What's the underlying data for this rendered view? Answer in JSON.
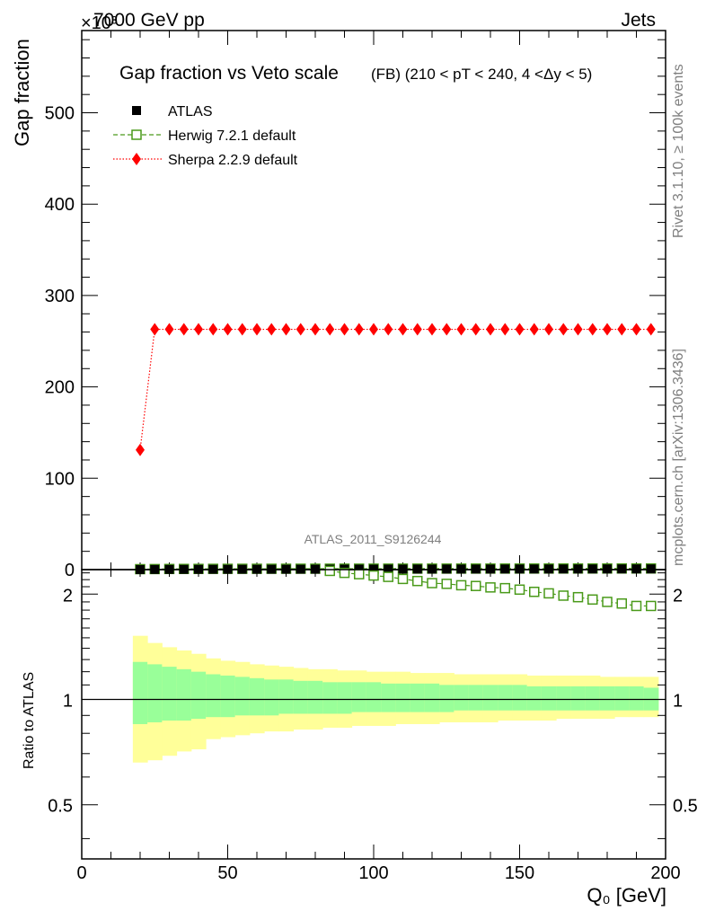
{
  "header": {
    "left": "7000 GeV pp",
    "right": "Jets",
    "exponent": "×10³"
  },
  "side_text": {
    "rivet": "Rivet 3.1.10, ≥ 100k events",
    "mcplots": "mcplots.cern.ch [arXiv:1306.3436]"
  },
  "watermark": "ATLAS_2011_S9126244",
  "colors": {
    "atlas": "#000000",
    "herwig": "#4a9a1a",
    "sherpa": "#ff0000",
    "band_inner": "#99ff99",
    "band_outer": "#ffff99"
  },
  "chart_data": [
    {
      "type": "scatter",
      "title": "Gap fraction vs Veto scale",
      "subtitle": "(FB) (210 < pT < 240, 4 <Δy < 5)",
      "xlabel": "Q₀ [GeV]",
      "ylabel": "Gap fraction",
      "xlim": [
        0,
        200
      ],
      "ylim": [
        0,
        590
      ],
      "yticks": [
        0,
        100,
        200,
        300,
        400,
        500
      ],
      "legend_position": "top-left",
      "x": [
        20,
        25,
        30,
        35,
        40,
        45,
        50,
        55,
        60,
        65,
        70,
        75,
        80,
        85,
        90,
        95,
        100,
        105,
        110,
        115,
        120,
        125,
        130,
        135,
        140,
        145,
        150,
        155,
        160,
        165,
        170,
        175,
        180,
        185,
        190,
        195
      ],
      "series": [
        {
          "name": "ATLAS",
          "marker": "filled-square",
          "values": [
            0.12,
            0.19,
            0.24,
            0.28,
            0.31,
            0.34,
            0.36,
            0.38,
            0.4,
            0.42,
            0.44,
            0.46,
            0.48,
            0.5,
            0.52,
            0.54,
            0.55,
            0.57,
            0.58,
            0.6,
            0.61,
            0.62,
            0.63,
            0.64,
            0.66,
            0.67,
            0.68,
            0.69,
            0.7,
            0.71,
            0.72,
            0.73,
            0.74,
            0.75,
            0.76,
            0.77
          ]
        },
        {
          "name": "Herwig 7.2.1 default",
          "marker": "open-square",
          "line": "dashed",
          "values": [
            0.5,
            0.6,
            0.7,
            0.75,
            0.8,
            0.85,
            0.88,
            0.9,
            0.92,
            0.94,
            0.96,
            0.98,
            1.0,
            1.02,
            1.04,
            1.05,
            1.06,
            1.07,
            1.08,
            1.09,
            1.1,
            1.11,
            1.12,
            1.13,
            1.14,
            1.15,
            1.16,
            1.17,
            1.18,
            1.19,
            1.2,
            1.21,
            1.22,
            1.23,
            1.24,
            1.25
          ]
        },
        {
          "name": "Sherpa 2.2.9 default",
          "marker": "filled-diamond",
          "line": "dotted",
          "values": [
            131,
            263,
            263,
            263,
            263,
            263,
            263,
            263,
            263,
            263,
            263,
            263,
            263,
            263,
            263,
            263,
            263,
            263,
            263,
            263,
            263,
            263,
            263,
            263,
            263,
            263,
            263,
            263,
            263,
            263,
            263,
            263,
            263,
            263,
            263,
            263
          ]
        }
      ]
    },
    {
      "type": "line",
      "ylabel": "Ratio to ATLAS",
      "xlabel": "Q₀ [GeV]",
      "xlim": [
        0,
        200
      ],
      "ylim": [
        0.35,
        2.35
      ],
      "yticks": [
        0.5,
        1,
        2
      ],
      "xticks": [
        0,
        50,
        100,
        150,
        200
      ],
      "bin_edges": [
        17.5,
        22.5,
        27.5,
        32.5,
        37.5,
        42.5,
        47.5,
        52.5,
        57.5,
        62.5,
        67.5,
        72.5,
        77.5,
        82.5,
        87.5,
        92.5,
        97.5,
        102.5,
        107.5,
        112.5,
        117.5,
        122.5,
        127.5,
        132.5,
        137.5,
        142.5,
        147.5,
        152.5,
        157.5,
        162.5,
        167.5,
        172.5,
        177.5,
        182.5,
        187.5,
        192.5,
        197.5
      ],
      "band_inner": {
        "lo": [
          0.85,
          0.86,
          0.87,
          0.87,
          0.88,
          0.89,
          0.89,
          0.9,
          0.9,
          0.9,
          0.91,
          0.91,
          0.91,
          0.91,
          0.91,
          0.92,
          0.92,
          0.92,
          0.92,
          0.92,
          0.92,
          0.92,
          0.93,
          0.93,
          0.93,
          0.93,
          0.93,
          0.93,
          0.93,
          0.93,
          0.93,
          0.93,
          0.93,
          0.93,
          0.93,
          0.93
        ],
        "hi": [
          1.28,
          1.26,
          1.24,
          1.22,
          1.2,
          1.18,
          1.17,
          1.16,
          1.15,
          1.14,
          1.14,
          1.13,
          1.13,
          1.12,
          1.12,
          1.12,
          1.12,
          1.11,
          1.11,
          1.11,
          1.11,
          1.1,
          1.1,
          1.1,
          1.1,
          1.1,
          1.1,
          1.09,
          1.09,
          1.09,
          1.09,
          1.09,
          1.09,
          1.09,
          1.09,
          1.08
        ]
      },
      "band_outer": {
        "lo": [
          0.66,
          0.67,
          0.69,
          0.71,
          0.72,
          0.77,
          0.78,
          0.79,
          0.8,
          0.81,
          0.81,
          0.82,
          0.82,
          0.83,
          0.83,
          0.84,
          0.84,
          0.84,
          0.85,
          0.85,
          0.85,
          0.86,
          0.86,
          0.86,
          0.86,
          0.87,
          0.87,
          0.87,
          0.87,
          0.88,
          0.88,
          0.88,
          0.88,
          0.89,
          0.89,
          0.89
        ],
        "hi": [
          1.52,
          1.45,
          1.41,
          1.38,
          1.35,
          1.31,
          1.29,
          1.28,
          1.26,
          1.25,
          1.24,
          1.23,
          1.22,
          1.22,
          1.21,
          1.21,
          1.2,
          1.2,
          1.2,
          1.19,
          1.19,
          1.19,
          1.18,
          1.18,
          1.18,
          1.18,
          1.18,
          1.17,
          1.17,
          1.17,
          1.17,
          1.17,
          1.16,
          1.16,
          1.16,
          1.16
        ]
      },
      "series": [
        {
          "name": "Herwig 7.2.1 default",
          "x": [
            85,
            90,
            95,
            100,
            105,
            110,
            115,
            120,
            125,
            130,
            135,
            140,
            145,
            150,
            155,
            160,
            165,
            170,
            175,
            180,
            185,
            190,
            195
          ],
          "values": [
            2.33,
            2.3,
            2.28,
            2.26,
            2.24,
            2.21,
            2.18,
            2.15,
            2.14,
            2.12,
            2.11,
            2.09,
            2.08,
            2.06,
            2.03,
            2.01,
            1.98,
            1.96,
            1.93,
            1.9,
            1.88,
            1.85,
            1.85
          ]
        }
      ],
      "reference_line": 1
    }
  ]
}
